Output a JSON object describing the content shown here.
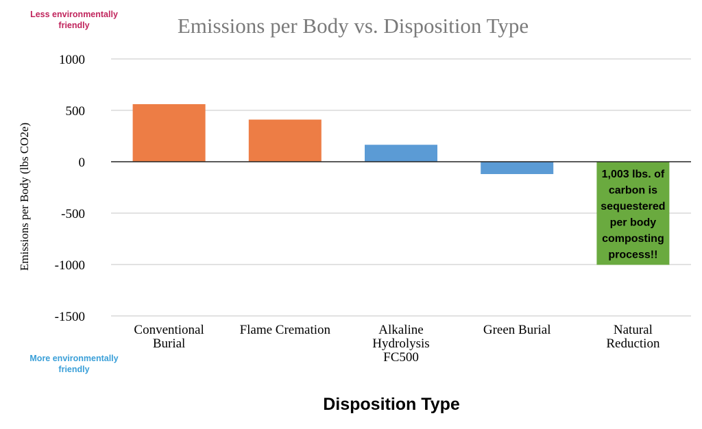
{
  "annotations": {
    "top": {
      "text": "Less environmentally friendly",
      "color": "#c0245c"
    },
    "bottom": {
      "text": "More environmentally friendly",
      "color": "#3a9fd8"
    },
    "callout": {
      "lines": [
        "1,003 lbs. of",
        "carbon is",
        "sequestered",
        "per body",
        "composting",
        "process!!"
      ],
      "color": "#6aaa3f"
    }
  },
  "colors": {
    "positive": "#ed7d45",
    "negative": "#5b9bd5",
    "grid": "#d0d0d0",
    "title": "#7a7a7a"
  },
  "chart_data": {
    "type": "bar",
    "title": "Emissions per Body vs. Disposition Type",
    "xlabel": "Disposition Type",
    "ylabel": "Emissions per Body (lbs CO2e)",
    "ylim": [
      -1500,
      1000
    ],
    "yticks": [
      1000,
      500,
      0,
      -500,
      -1000,
      -1500
    ],
    "grid": true,
    "legend": "none",
    "categories": [
      [
        "Conventional",
        "Burial"
      ],
      [
        "Flame Cremation"
      ],
      [
        "Alkaline",
        "Hydrolysis",
        "FC500"
      ],
      [
        "Green Burial"
      ],
      [
        "Natural",
        "Reduction"
      ]
    ],
    "values": [
      560,
      410,
      165,
      -120,
      -1003
    ],
    "bar_colors": [
      "#ed7d45",
      "#ed7d45",
      "#5b9bd5",
      "#5b9bd5",
      "#6aaa3f"
    ]
  }
}
